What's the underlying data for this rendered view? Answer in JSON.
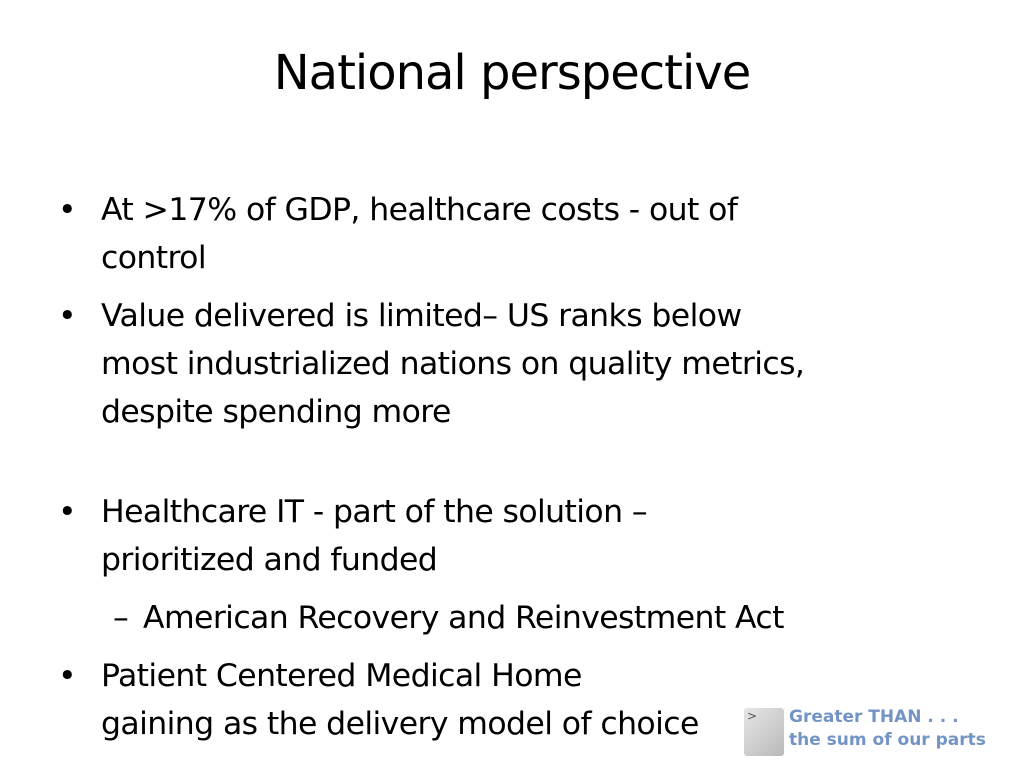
{
  "slide": {
    "title": "National perspective",
    "bullet_glyph": "•",
    "dash_glyph": "–",
    "bullets": [
      {
        "lines": [
          "At >17% of GDP, healthcare costs - out of",
          "control"
        ]
      },
      {
        "lines": [
          "Value delivered is limited– US ranks below",
          "most industrialized nations on quality metrics,",
          "despite spending more"
        ]
      },
      {
        "lines": [
          "Healthcare IT - part of the solution –",
          "prioritized and funded"
        ]
      },
      {
        "sub": "American Recovery and Reinvestment Act"
      },
      {
        "lines": [
          "Patient Centered Medical Home",
          "gaining as the delivery model of choice"
        ]
      }
    ]
  },
  "logo": {
    "line1": "Greater THAN . . .",
    "line2": "the sum of our parts",
    "chevron": ">",
    "color": "#7394c4"
  }
}
